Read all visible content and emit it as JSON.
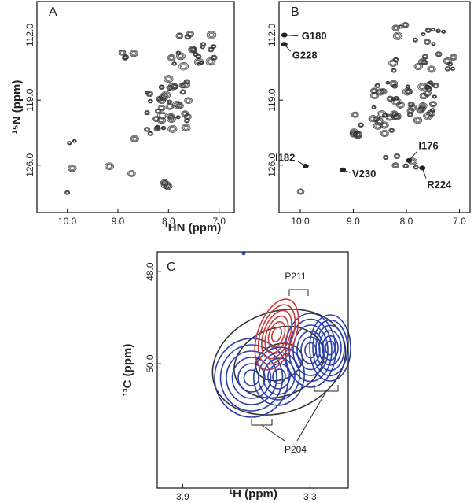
{
  "chart_data": [
    {
      "type": "contour",
      "panel_label": "A",
      "ylabel": "¹⁵N (ppm)",
      "xlim": [
        10.6,
        6.7
      ],
      "ylim": [
        131.1,
        108.4
      ],
      "xticks": [
        {
          "value": 10,
          "label": "10.0"
        },
        {
          "value": 9,
          "label": "9.0"
        },
        {
          "value": 8,
          "label": "8.0"
        },
        {
          "value": 7,
          "label": "7.0"
        }
      ],
      "yticks": [
        {
          "value": 112,
          "label": "112.0"
        },
        {
          "value": 119,
          "label": "119.0"
        },
        {
          "value": 126,
          "label": "126.0"
        }
      ],
      "annotations": []
    },
    {
      "type": "contour",
      "panel_label": "B",
      "xlabel": "¹HN (ppm)",
      "xlim": [
        10.4,
        6.8
      ],
      "ylim": [
        131.1,
        108.4
      ],
      "xticks": [
        {
          "value": 10,
          "label": "10.0"
        },
        {
          "value": 9,
          "label": "9.0"
        },
        {
          "value": 8,
          "label": "8.0"
        },
        {
          "value": 7,
          "label": "7.0"
        }
      ],
      "yticks": [
        {
          "value": 112,
          "label": "112.0"
        },
        {
          "value": 119,
          "label": "119.0"
        },
        {
          "value": 126,
          "label": "126.0"
        }
      ],
      "annotations": [
        {
          "text": "G180",
          "x": 10.3,
          "y": 112.0
        },
        {
          "text": "G228",
          "x": 10.3,
          "y": 113.0
        },
        {
          "text": "I182",
          "x": 9.9,
          "y": 126.1
        },
        {
          "text": "V230",
          "x": 9.2,
          "y": 126.5
        },
        {
          "text": "I176",
          "x": 7.95,
          "y": 125.5
        },
        {
          "text": "R224",
          "x": 7.7,
          "y": 126.3
        }
      ]
    },
    {
      "type": "contour",
      "panel_label": "C",
      "xlabel": "¹H (ppm)",
      "ylabel": "¹³C (ppm)",
      "xlim": [
        4.02,
        3.12
      ],
      "ylim": [
        52.7,
        47.57
      ],
      "xticks": [
        3.9,
        3.3
      ],
      "yticks": [
        {
          "value": 48,
          "label": "48.0"
        },
        {
          "value": 50,
          "label": "50.0"
        }
      ],
      "annotations": [
        {
          "text": "P211"
        },
        {
          "text": "P204"
        }
      ]
    }
  ]
}
